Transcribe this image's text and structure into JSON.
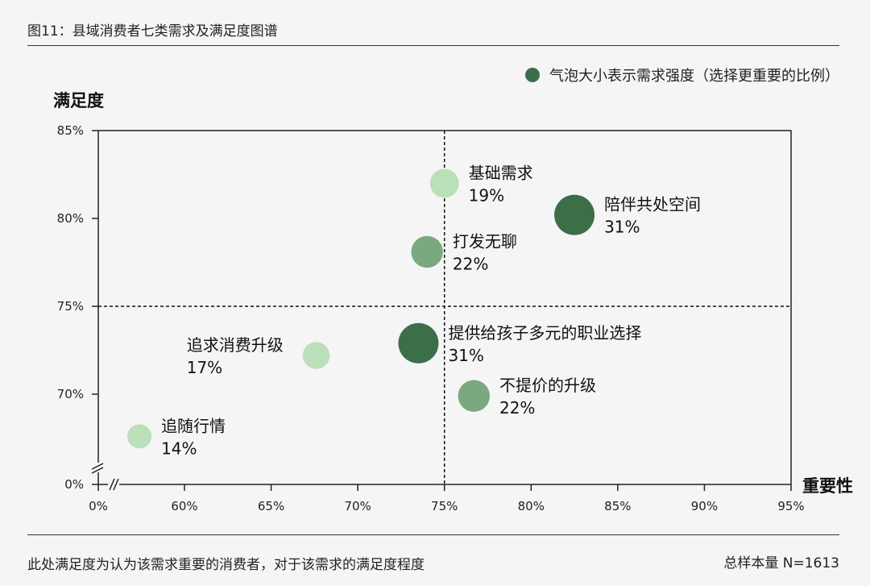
{
  "page": {
    "title": "图11：县域消费者七类需求及满足度图谱",
    "footnote": "此处满足度为认为该需求重要的消费者，对于该需求的满足度程度",
    "sample": "总样本量 N=1613"
  },
  "legend": {
    "label": "气泡大小表示需求强度（选择更重要的比例）",
    "color": "#3c6e47"
  },
  "chart_data": {
    "type": "scatter",
    "title": "",
    "xlabel": "重要性",
    "ylabel": "满足度",
    "x_ticks": [
      "0%",
      "60%",
      "65%",
      "70%",
      "75%",
      "80%",
      "85%",
      "90%",
      "95%"
    ],
    "y_ticks": [
      "0%",
      "70%",
      "75%",
      "80%",
      "85%"
    ],
    "xlim": [
      55,
      95
    ],
    "ylim": [
      65,
      85
    ],
    "x_break": true,
    "y_break": true,
    "reference_lines": {
      "x": 75,
      "y": 75
    },
    "grid": false,
    "points": [
      {
        "name": "基础需求",
        "value_label": "19%",
        "x": 75.0,
        "y": 82.0,
        "size": 19,
        "color": "#b9e0b9"
      },
      {
        "name": "陪伴共处空间",
        "value_label": "31%",
        "x": 82.5,
        "y": 80.2,
        "size": 31,
        "color": "#3c6e47"
      },
      {
        "name": "打发无聊",
        "value_label": "22%",
        "x": 74.0,
        "y": 78.1,
        "size": 22,
        "color": "#7aa87f"
      },
      {
        "name": "提供给孩子多元的职业选择",
        "value_label": "31%",
        "x": 73.5,
        "y": 72.9,
        "size": 31,
        "color": "#3c6e47"
      },
      {
        "name": "追求消费升级",
        "value_label": "17%",
        "x": 67.6,
        "y": 72.2,
        "size": 17,
        "color": "#b9e0b9"
      },
      {
        "name": "不提价的升级",
        "value_label": "22%",
        "x": 76.7,
        "y": 69.9,
        "size": 22,
        "color": "#7aa87f"
      },
      {
        "name": "追随行情",
        "value_label": "14%",
        "x": 57.4,
        "y": 67.6,
        "size": 14,
        "color": "#b9e0b9"
      }
    ]
  }
}
